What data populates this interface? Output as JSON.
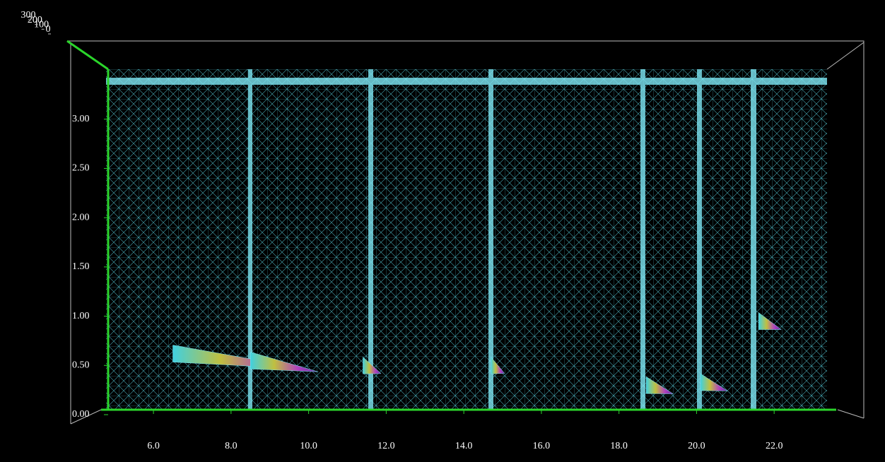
{
  "chart_data": {
    "type": "surface3d",
    "xlim": [
      4.65,
      23.6
    ],
    "xticks": [
      {
        "value": 6,
        "label": "6.0"
      },
      {
        "value": 8,
        "label": "8.0"
      },
      {
        "value": 10,
        "label": "10.0"
      },
      {
        "value": 12,
        "label": "12.0"
      },
      {
        "value": 14,
        "label": "14.0"
      },
      {
        "value": 16,
        "label": "16.0"
      },
      {
        "value": 18,
        "label": "18.0"
      },
      {
        "value": 20,
        "label": "20.0"
      },
      {
        "value": 22,
        "label": "22.0"
      }
    ],
    "ylim": [
      0,
      3.5
    ],
    "yticks": [
      {
        "value": 0,
        "label": "0.00"
      },
      {
        "value": 0.5,
        "label": "0.50"
      },
      {
        "value": 1,
        "label": "1.00"
      },
      {
        "value": 1.5,
        "label": "1.50"
      },
      {
        "value": 2,
        "label": "2.00"
      },
      {
        "value": 2.5,
        "label": "2.50"
      },
      {
        "value": 3,
        "label": "3.00"
      }
    ],
    "zlim": [
      0,
      300
    ],
    "zticks": [
      0,
      100,
      200,
      300
    ],
    "peaks": {
      "x": [
        6.5,
        8.5,
        11.4,
        14.7,
        18.7,
        20.1,
        21.6
      ],
      "y": [
        0.62,
        0.55,
        0.5,
        0.5,
        0.3,
        0.33,
        0.95
      ],
      "z": [
        300,
        150,
        40,
        30,
        60,
        60,
        50
      ]
    }
  }
}
